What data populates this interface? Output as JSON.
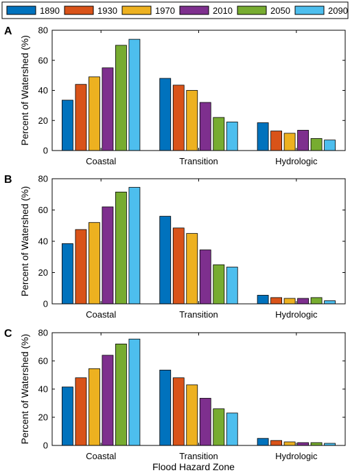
{
  "legend": {
    "entries": [
      {
        "label": "1890",
        "color": "#0072BD"
      },
      {
        "label": "1930",
        "color": "#D95319"
      },
      {
        "label": "1970",
        "color": "#EDB120"
      },
      {
        "label": "2010",
        "color": "#7E2F8E"
      },
      {
        "label": "2050",
        "color": "#77AC30"
      },
      {
        "label": "2090",
        "color": "#4DBEEE"
      }
    ]
  },
  "xlabel": "Flood Hazard Zone",
  "chart_data": [
    {
      "panel": "A",
      "type": "bar",
      "categories": [
        "Coastal",
        "Transition",
        "Hydrologic"
      ],
      "ylabel": "Percent of Watershed (%)",
      "ylim": [
        0,
        80
      ],
      "yticks": [
        0,
        20,
        40,
        60,
        80
      ],
      "series": [
        {
          "name": "1890",
          "values": [
            33.5,
            48,
            18.5
          ]
        },
        {
          "name": "1930",
          "values": [
            44,
            43.5,
            13
          ]
        },
        {
          "name": "1970",
          "values": [
            49,
            40,
            11.5
          ]
        },
        {
          "name": "2010",
          "values": [
            55,
            32,
            13.5
          ]
        },
        {
          "name": "2050",
          "values": [
            70,
            22,
            8
          ]
        },
        {
          "name": "2090",
          "values": [
            74,
            19,
            7
          ]
        }
      ]
    },
    {
      "panel": "B",
      "type": "bar",
      "categories": [
        "Coastal",
        "Transition",
        "Hydrologic"
      ],
      "ylabel": "Percent of Watershed (%)",
      "ylim": [
        0,
        80
      ],
      "yticks": [
        0,
        20,
        40,
        60,
        80
      ],
      "series": [
        {
          "name": "1890",
          "values": [
            38.5,
            56,
            5.5
          ]
        },
        {
          "name": "1930",
          "values": [
            47.5,
            48.5,
            4
          ]
        },
        {
          "name": "1970",
          "values": [
            52,
            45,
            3.5
          ]
        },
        {
          "name": "2010",
          "values": [
            62,
            34.5,
            3.5
          ]
        },
        {
          "name": "2050",
          "values": [
            71.5,
            25,
            4
          ]
        },
        {
          "name": "2090",
          "values": [
            74.5,
            23.5,
            2
          ]
        }
      ]
    },
    {
      "panel": "C",
      "type": "bar",
      "categories": [
        "Coastal",
        "Transition",
        "Hydrologic"
      ],
      "ylabel": "Percent of Watershed (%)",
      "ylim": [
        0,
        80
      ],
      "yticks": [
        0,
        20,
        40,
        60,
        80
      ],
      "series": [
        {
          "name": "1890",
          "values": [
            41.5,
            53.5,
            5
          ]
        },
        {
          "name": "1930",
          "values": [
            48,
            48,
            3.5
          ]
        },
        {
          "name": "1970",
          "values": [
            54.5,
            43,
            2.5
          ]
        },
        {
          "name": "2010",
          "values": [
            64,
            33.5,
            2
          ]
        },
        {
          "name": "2050",
          "values": [
            72,
            26,
            2
          ]
        },
        {
          "name": "2090",
          "values": [
            75.5,
            23,
            1.5
          ]
        }
      ]
    }
  ]
}
